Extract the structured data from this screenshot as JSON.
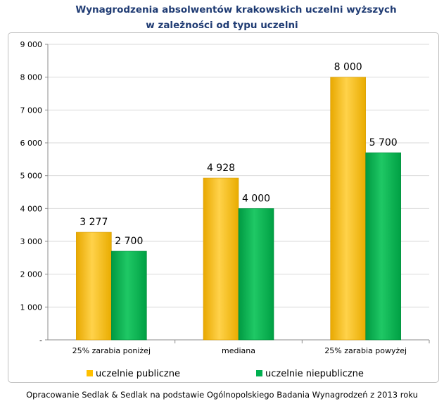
{
  "chart_data": {
    "type": "bar",
    "title_line1": "Wynagrodzenia absolwentów krakowskich uczelni wyższych",
    "title_line2": "w zależności od typu uczelni",
    "categories": [
      "25% zarabia poniżej",
      "mediana",
      "25% zarabia powyżej"
    ],
    "series": [
      {
        "name": "uczelnie publiczne",
        "values": [
          3277,
          4928,
          8000
        ],
        "labels": [
          "3 277",
          "4 928",
          "8 000"
        ],
        "color": "#ffc000"
      },
      {
        "name": "uczelnie niepubliczne",
        "values": [
          2700,
          4000,
          5700
        ],
        "labels": [
          "2 700",
          "4 000",
          "5 700"
        ],
        "color": "#00b050"
      }
    ],
    "yticks": [
      {
        "value": 0,
        "label": "-"
      },
      {
        "value": 1000,
        "label": "1 000"
      },
      {
        "value": 2000,
        "label": "2 000"
      },
      {
        "value": 3000,
        "label": "3 000"
      },
      {
        "value": 4000,
        "label": "4 000"
      },
      {
        "value": 5000,
        "label": "5 000"
      },
      {
        "value": 6000,
        "label": "6 000"
      },
      {
        "value": 7000,
        "label": "7 000"
      },
      {
        "value": 8000,
        "label": "8 000"
      },
      {
        "value": 9000,
        "label": "9 000"
      }
    ],
    "ylim": [
      0,
      9000
    ],
    "grid": true,
    "legend_position": "bottom",
    "source": "Opracowanie Sedlak & Sedlak na podstawie Ogólnopolskiego Badania Wynagrodzeń z 2013 roku"
  }
}
